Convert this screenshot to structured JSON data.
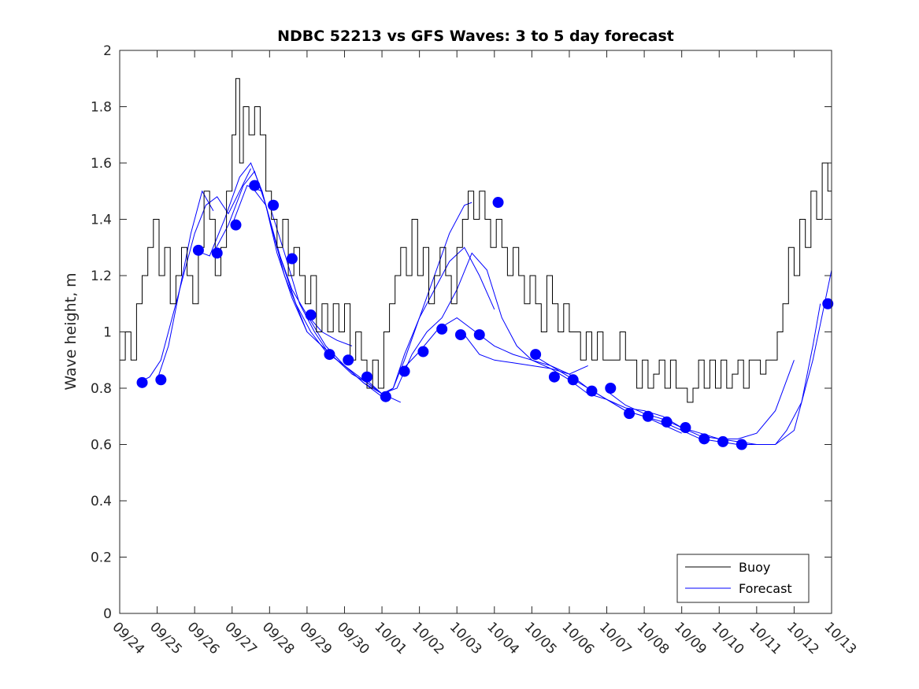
{
  "chart_data": {
    "type": "line",
    "title": "NDBC 52213 vs GFS Waves: 3 to 5 day forecast",
    "xlabel": "",
    "ylabel": "Wave height, m",
    "xlim": [
      0,
      19
    ],
    "ylim": [
      0,
      2
    ],
    "yticks": [
      0,
      0.2,
      0.4,
      0.6,
      0.8,
      1,
      1.2,
      1.4,
      1.6,
      1.8,
      2
    ],
    "ytick_labels": [
      "0",
      "0.2",
      "0.4",
      "0.6",
      "0.8",
      "1",
      "1.2",
      "1.4",
      "1.6",
      "1.8",
      "2"
    ],
    "xtick_labels": [
      "09/24",
      "09/25",
      "09/26",
      "09/27",
      "09/28",
      "09/29",
      "09/30",
      "10/01",
      "10/02",
      "10/03",
      "10/04",
      "10/05",
      "10/06",
      "10/07",
      "10/08",
      "10/09",
      "10/10",
      "10/11",
      "10/12",
      "10/13"
    ],
    "legend": {
      "location": "bottom-right",
      "entries": [
        "Buoy",
        "Forecast"
      ]
    },
    "colors": {
      "buoy": "#000000",
      "forecast": "#0000ff",
      "marker": "#0000ff",
      "axis": "#262626"
    },
    "buoy": {
      "name": "Buoy",
      "x": [
        0,
        0.15,
        0.3,
        0.45,
        0.6,
        0.75,
        0.9,
        1.05,
        1.2,
        1.35,
        1.5,
        1.65,
        1.8,
        1.95,
        2.1,
        2.25,
        2.4,
        2.55,
        2.7,
        2.85,
        3.0,
        3.1,
        3.2,
        3.3,
        3.45,
        3.6,
        3.75,
        3.9,
        4.05,
        4.2,
        4.35,
        4.5,
        4.65,
        4.8,
        4.95,
        5.1,
        5.25,
        5.4,
        5.55,
        5.7,
        5.85,
        6.0,
        6.15,
        6.3,
        6.45,
        6.6,
        6.75,
        6.9,
        7.05,
        7.2,
        7.35,
        7.5,
        7.65,
        7.8,
        7.95,
        8.1,
        8.25,
        8.4,
        8.55,
        8.7,
        8.85,
        9.0,
        9.15,
        9.3,
        9.45,
        9.6,
        9.75,
        9.9,
        10.05,
        10.2,
        10.35,
        10.5,
        10.65,
        10.8,
        10.95,
        11.1,
        11.25,
        11.4,
        11.55,
        11.7,
        11.85,
        12.0,
        12.15,
        12.3,
        12.45,
        12.6,
        12.75,
        12.9,
        13.05,
        13.2,
        13.35,
        13.5,
        13.65,
        13.8,
        13.95,
        14.1,
        14.25,
        14.4,
        14.55,
        14.7,
        14.85,
        15.0,
        15.15,
        15.3,
        15.45,
        15.6,
        15.75,
        15.9,
        16.05,
        16.2,
        16.35,
        16.5,
        16.65,
        16.8,
        16.95,
        17.1,
        17.25,
        17.4,
        17.55,
        17.7,
        17.85,
        18.0,
        18.15,
        18.3,
        18.45,
        18.6,
        18.75,
        18.9,
        19.0
      ],
      "y": [
        0.9,
        1.0,
        0.9,
        1.1,
        1.2,
        1.3,
        1.4,
        1.2,
        1.3,
        1.1,
        1.2,
        1.3,
        1.2,
        1.1,
        1.3,
        1.5,
        1.4,
        1.2,
        1.3,
        1.5,
        1.7,
        1.9,
        1.6,
        1.8,
        1.7,
        1.8,
        1.7,
        1.5,
        1.4,
        1.3,
        1.4,
        1.2,
        1.3,
        1.2,
        1.1,
        1.2,
        1.0,
        1.1,
        1.0,
        1.1,
        1.0,
        1.1,
        0.9,
        1.0,
        0.9,
        0.8,
        0.9,
        0.8,
        1.0,
        1.1,
        1.2,
        1.3,
        1.2,
        1.4,
        1.2,
        1.3,
        1.1,
        1.2,
        1.3,
        1.2,
        1.1,
        1.3,
        1.4,
        1.5,
        1.4,
        1.5,
        1.4,
        1.3,
        1.4,
        1.3,
        1.2,
        1.3,
        1.2,
        1.1,
        1.2,
        1.1,
        1.0,
        1.2,
        1.1,
        1.0,
        1.1,
        1.0,
        1.0,
        0.9,
        1.0,
        0.9,
        1.0,
        0.9,
        0.9,
        0.9,
        1.0,
        0.9,
        0.9,
        0.8,
        0.9,
        0.8,
        0.85,
        0.9,
        0.8,
        0.9,
        0.8,
        0.8,
        0.75,
        0.8,
        0.9,
        0.8,
        0.9,
        0.8,
        0.9,
        0.8,
        0.85,
        0.9,
        0.8,
        0.9,
        0.9,
        0.85,
        0.9,
        0.9,
        1.0,
        1.1,
        1.3,
        1.2,
        1.4,
        1.3,
        1.5,
        1.4,
        1.6,
        1.5,
        1.7
      ]
    },
    "forecast_runs": [
      {
        "name": "Forecast",
        "x": [
          0.5,
          0.8,
          1.1,
          1.4,
          1.7,
          2.0,
          2.3,
          2.6,
          2.9,
          3.2,
          3.5
        ],
        "y": [
          0.82,
          0.84,
          0.9,
          1.05,
          1.2,
          1.35,
          1.45,
          1.48,
          1.42,
          1.5,
          1.58
        ]
      },
      {
        "name": "Forecast",
        "x": [
          1.0,
          1.3,
          1.6,
          1.9,
          2.2,
          2.5
        ],
        "y": [
          0.83,
          0.95,
          1.15,
          1.35,
          1.5,
          1.43
        ]
      },
      {
        "name": "Forecast",
        "x": [
          2.0,
          2.4,
          2.8,
          3.2,
          3.5,
          3.8,
          4.1,
          4.4,
          4.7,
          5.0
        ],
        "y": [
          1.29,
          1.27,
          1.4,
          1.55,
          1.6,
          1.5,
          1.35,
          1.2,
          1.1,
          1.0
        ]
      },
      {
        "name": "Forecast",
        "x": [
          2.5,
          2.9,
          3.3,
          3.6,
          3.9,
          4.2,
          4.6,
          5.0,
          5.4,
          5.8,
          6.2,
          6.6,
          6.9,
          7.2
        ],
        "y": [
          1.28,
          1.38,
          1.52,
          1.57,
          1.45,
          1.28,
          1.12,
          1.0,
          0.95,
          0.9,
          0.85,
          0.82,
          0.79,
          0.76
        ]
      },
      {
        "name": "Forecast",
        "x": [
          3.0,
          3.4,
          3.8,
          4.2,
          4.6,
          5.0,
          5.4,
          5.8,
          6.2
        ],
        "y": [
          1.38,
          1.52,
          1.5,
          1.3,
          1.15,
          1.06,
          1.0,
          0.97,
          0.95
        ]
      },
      {
        "name": "Forecast",
        "x": [
          3.5,
          3.9,
          4.3,
          4.7,
          5.1,
          5.5,
          6.0,
          6.5,
          7.0,
          7.5
        ],
        "y": [
          1.52,
          1.45,
          1.26,
          1.1,
          1.0,
          0.93,
          0.88,
          0.83,
          0.78,
          0.75
        ]
      },
      {
        "name": "Forecast",
        "x": [
          4.0,
          4.4,
          4.8,
          5.2,
          5.6,
          6.0,
          6.5,
          7.0,
          7.3,
          7.6,
          8.0,
          8.4,
          8.8,
          9.2,
          9.4
        ],
        "y": [
          1.45,
          1.28,
          1.1,
          1.0,
          0.92,
          0.88,
          0.82,
          0.78,
          0.8,
          0.9,
          1.05,
          1.2,
          1.35,
          1.45,
          1.46
        ]
      },
      {
        "name": "Forecast",
        "x": [
          5.0,
          5.5,
          6.0,
          6.5,
          7.0,
          7.3,
          7.6,
          8.0,
          8.4,
          8.8,
          9.2,
          9.6,
          10.0
        ],
        "y": [
          1.06,
          0.95,
          0.88,
          0.82,
          0.77,
          0.8,
          0.92,
          1.05,
          1.15,
          1.25,
          1.3,
          1.2,
          1.08
        ]
      },
      {
        "name": "Forecast",
        "x": [
          6.5,
          7.0,
          7.4,
          7.8,
          8.2,
          8.6,
          9.0,
          9.4,
          9.8,
          10.2,
          10.6,
          11.0,
          11.5,
          12.0,
          12.5
        ],
        "y": [
          0.84,
          0.78,
          0.8,
          0.92,
          1.0,
          1.05,
          1.15,
          1.28,
          1.22,
          1.05,
          0.95,
          0.9,
          0.87,
          0.85,
          0.88
        ]
      },
      {
        "name": "Forecast",
        "x": [
          7.5,
          8.0,
          8.5,
          9.0,
          9.5,
          10.0,
          10.5,
          11.0,
          11.5,
          12.0,
          12.5,
          13.0,
          13.5,
          14.0
        ],
        "y": [
          0.86,
          0.93,
          1.01,
          1.05,
          1.0,
          0.95,
          0.92,
          0.9,
          0.88,
          0.85,
          0.8,
          0.76,
          0.72,
          0.7
        ]
      },
      {
        "name": "Forecast",
        "x": [
          9.2,
          9.6,
          10.0,
          10.5,
          11.0,
          11.5,
          12.0,
          12.5,
          13.0,
          13.5,
          14.0,
          14.5,
          15.0
        ],
        "y": [
          0.99,
          0.92,
          0.9,
          0.89,
          0.88,
          0.87,
          0.83,
          0.78,
          0.76,
          0.72,
          0.7,
          0.67,
          0.64
        ]
      },
      {
        "name": "Forecast",
        "x": [
          11.0,
          11.5,
          12.0,
          12.5,
          13.0,
          13.5,
          14.0,
          14.5,
          15.0,
          15.5,
          16.0,
          16.5,
          17.0,
          17.5,
          18.0
        ],
        "y": [
          0.92,
          0.88,
          0.84,
          0.8,
          0.76,
          0.73,
          0.72,
          0.7,
          0.66,
          0.63,
          0.62,
          0.62,
          0.64,
          0.72,
          0.9
        ]
      },
      {
        "name": "Forecast",
        "x": [
          13.0,
          13.5,
          14.0,
          14.5,
          15.0,
          15.5,
          16.0,
          16.5,
          17.0,
          17.5,
          17.8,
          18.2,
          18.5,
          18.7
        ],
        "y": [
          0.79,
          0.74,
          0.71,
          0.69,
          0.66,
          0.64,
          0.62,
          0.61,
          0.6,
          0.6,
          0.65,
          0.75,
          0.95,
          1.1
        ]
      },
      {
        "name": "Forecast",
        "x": [
          14.0,
          14.5,
          15.0,
          15.5,
          16.0,
          16.5,
          17.0,
          17.5,
          18.0,
          18.5,
          19.0
        ],
        "y": [
          0.7,
          0.68,
          0.65,
          0.62,
          0.61,
          0.6,
          0.6,
          0.6,
          0.65,
          0.9,
          1.22
        ]
      }
    ],
    "forecast_points": {
      "x": [
        0.6,
        1.1,
        2.1,
        2.6,
        3.1,
        3.6,
        4.1,
        4.6,
        5.1,
        5.6,
        6.1,
        6.6,
        7.1,
        7.6,
        8.1,
        8.6,
        9.1,
        9.6,
        10.1,
        11.1,
        11.6,
        12.1,
        12.6,
        13.1,
        13.6,
        14.1,
        14.6,
        15.1,
        15.6,
        16.1,
        16.6,
        18.9
      ],
      "y": [
        0.82,
        0.83,
        1.29,
        1.28,
        1.38,
        1.52,
        1.45,
        1.26,
        1.06,
        0.92,
        0.9,
        0.84,
        0.77,
        0.86,
        0.93,
        1.01,
        0.99,
        0.99,
        1.46,
        0.92,
        0.84,
        0.83,
        0.79,
        0.8,
        0.71,
        0.7,
        0.68,
        0.66,
        0.62,
        0.61,
        0.6,
        1.1
      ]
    }
  }
}
